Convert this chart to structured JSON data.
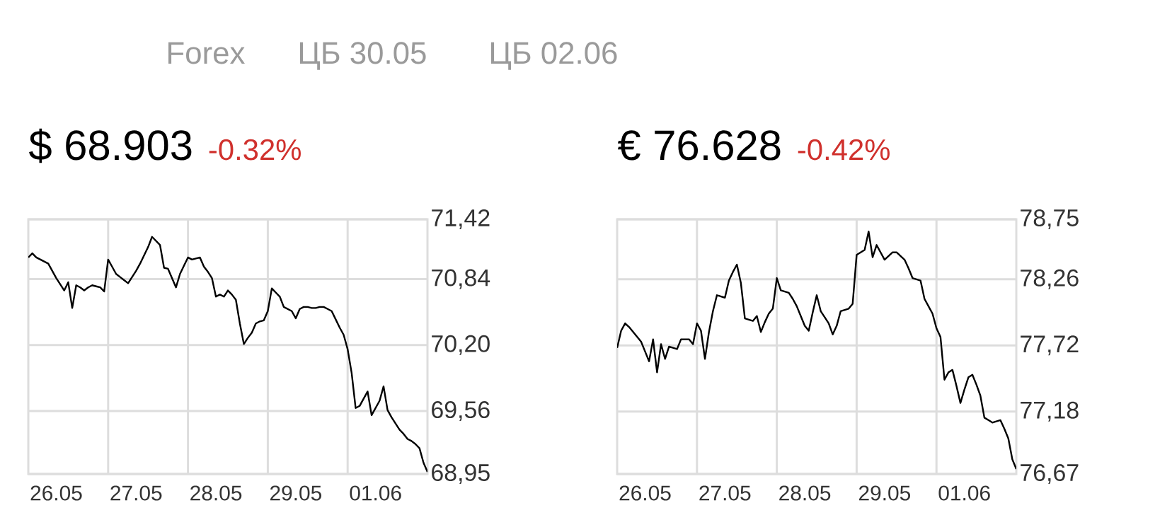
{
  "chart_data": [
    {
      "type": "line",
      "title": "$ 68.903",
      "subtitle": "-0.32%",
      "annotations": [
        "Forex",
        "ЦБ 30.05",
        "ЦБ 02.06"
      ],
      "categories": [
        null,
        null,
        null,
        null,
        null,
        null,
        null,
        "26.05",
        null,
        null,
        null,
        null,
        null,
        null,
        null,
        null,
        null,
        null,
        null,
        null,
        null,
        null,
        null,
        null,
        null,
        null,
        null,
        "27.05",
        null,
        null,
        null,
        null,
        null,
        null,
        null,
        null,
        null,
        null,
        null,
        null,
        null,
        null,
        null,
        null,
        null,
        null,
        null,
        "28.05",
        null,
        null,
        null,
        null,
        null,
        null,
        null,
        null,
        null,
        null,
        null,
        null,
        null,
        null,
        null,
        null,
        null,
        null,
        null,
        "29.05",
        null,
        null,
        null,
        null,
        null,
        null,
        null,
        null,
        null,
        null,
        null,
        null,
        null,
        null,
        null,
        null,
        null,
        null,
        null,
        "01.06",
        null,
        null,
        null,
        null,
        null,
        null,
        null,
        null,
        null,
        null,
        null,
        null,
        null
      ],
      "series": [
        {
          "color": "#000000",
          "values": [
            71.05,
            71.09,
            71.05,
            71.03,
            71.01,
            70.99,
            70.92,
            70.85,
            70.79,
            70.73,
            70.81,
            70.56,
            70.78,
            70.76,
            70.73,
            70.76,
            70.78,
            70.77,
            70.76,
            70.72,
            71.03,
            70.96,
            70.89,
            70.86,
            70.83,
            70.8,
            70.86,
            70.92,
            70.99,
            71.07,
            71.15,
            71.25,
            71.21,
            71.17,
            70.95,
            70.94,
            70.85,
            70.76,
            70.89,
            70.97,
            71.05,
            71.03,
            71.04,
            71.05,
            70.96,
            70.91,
            70.85,
            70.67,
            70.69,
            70.67,
            70.73,
            70.69,
            70.64,
            70.41,
            70.21,
            70.27,
            70.32,
            70.41,
            70.43,
            70.44,
            70.53,
            70.75,
            70.71,
            70.67,
            70.57,
            70.55,
            70.53,
            70.46,
            70.55,
            70.57,
            70.57,
            70.56,
            70.56,
            70.57,
            70.57,
            70.55,
            70.53,
            70.45,
            70.37,
            70.3,
            70.16,
            69.93,
            69.59,
            69.61,
            69.68,
            69.75,
            69.52,
            69.59,
            69.66,
            69.8,
            69.57,
            69.5,
            69.44,
            69.38,
            69.34,
            69.29,
            69.27,
            69.24,
            69.2,
            69.06,
            68.97
          ]
        }
      ],
      "ylim": [
        68.95,
        71.42
      ],
      "yticks": [
        {
          "value": 68.95,
          "label": "68,95"
        },
        {
          "value": 69.56,
          "label": "69,56"
        },
        {
          "value": 70.2,
          "label": "70,20"
        },
        {
          "value": 70.84,
          "label": "70,84"
        },
        {
          "value": 71.42,
          "label": "71,42"
        }
      ],
      "grid": true
    },
    {
      "type": "line",
      "title": "€ 76.628",
      "subtitle": "-0.42%",
      "categories": [
        null,
        null,
        null,
        null,
        null,
        null,
        null,
        "26.05",
        null,
        null,
        null,
        null,
        null,
        null,
        null,
        null,
        null,
        null,
        null,
        null,
        null,
        null,
        null,
        null,
        null,
        null,
        null,
        "27.05",
        null,
        null,
        null,
        null,
        null,
        null,
        null,
        null,
        null,
        null,
        null,
        null,
        null,
        null,
        null,
        null,
        null,
        null,
        null,
        "28.05",
        null,
        null,
        null,
        null,
        null,
        null,
        null,
        null,
        null,
        null,
        null,
        null,
        null,
        null,
        null,
        null,
        null,
        null,
        null,
        "29.05",
        null,
        null,
        null,
        null,
        null,
        null,
        null,
        null,
        null,
        null,
        null,
        null,
        null,
        null,
        null,
        null,
        null,
        null,
        null,
        "01.06",
        null,
        null,
        null,
        null,
        null,
        null,
        null,
        null,
        null,
        null,
        null,
        null,
        null
      ],
      "series": [
        {
          "color": "#000000",
          "values": [
            77.7,
            77.84,
            77.9,
            77.87,
            77.83,
            77.79,
            77.75,
            77.67,
            77.59,
            77.77,
            77.5,
            77.73,
            77.61,
            77.71,
            77.7,
            77.69,
            77.77,
            77.77,
            77.77,
            77.73,
            77.9,
            77.84,
            77.61,
            77.83,
            78.0,
            78.13,
            78.12,
            78.11,
            78.25,
            78.32,
            78.38,
            78.23,
            77.94,
            77.93,
            77.92,
            77.96,
            77.83,
            77.91,
            77.98,
            78.02,
            78.27,
            78.17,
            78.16,
            78.15,
            78.1,
            78.04,
            77.96,
            77.88,
            77.84,
            77.99,
            78.13,
            78.0,
            77.95,
            77.9,
            77.81,
            77.88,
            78.0,
            78.01,
            78.02,
            78.06,
            78.46,
            78.48,
            78.5,
            78.65,
            78.44,
            78.54,
            78.48,
            78.42,
            78.45,
            78.48,
            78.48,
            78.45,
            78.42,
            78.35,
            78.27,
            78.26,
            78.25,
            78.1,
            78.04,
            77.98,
            77.86,
            77.79,
            77.44,
            77.5,
            77.52,
            77.39,
            77.25,
            77.36,
            77.46,
            77.48,
            77.4,
            77.31,
            77.13,
            77.11,
            77.09,
            77.1,
            77.11,
            77.04,
            76.96,
            76.79,
            76.71
          ]
        }
      ],
      "ylim": [
        76.67,
        78.75
      ],
      "yticks": [
        {
          "value": 76.67,
          "label": "76,67"
        },
        {
          "value": 77.18,
          "label": "77,18"
        },
        {
          "value": 77.72,
          "label": "77,72"
        },
        {
          "value": 78.26,
          "label": "78,26"
        },
        {
          "value": 78.75,
          "label": "78,75"
        }
      ],
      "grid": true
    }
  ]
}
